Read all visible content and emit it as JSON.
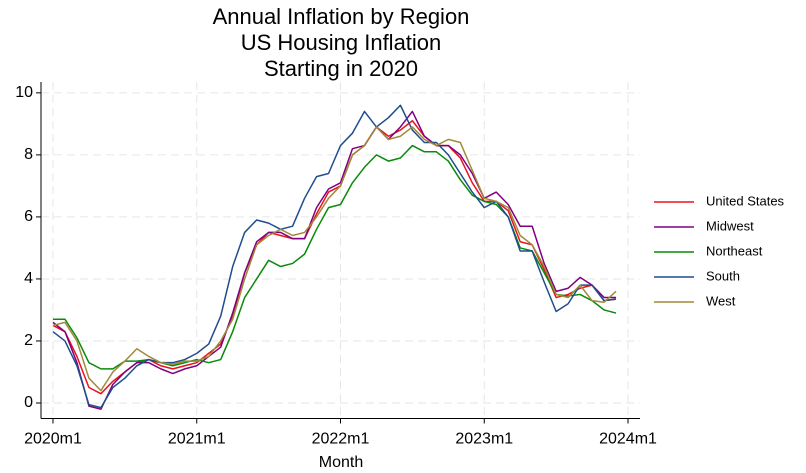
{
  "chart_data": {
    "type": "line",
    "title": [
      "Annual Inflation by Region",
      "US Housing Inflation",
      "Starting in 2020"
    ],
    "x_label": "Month",
    "x": [
      720,
      721,
      722,
      723,
      724,
      725,
      726,
      727,
      728,
      729,
      730,
      731,
      732,
      733,
      734,
      735,
      736,
      737,
      738,
      739,
      740,
      741,
      742,
      743,
      744,
      745,
      746,
      747,
      748,
      749,
      750,
      751,
      752,
      753,
      754,
      755,
      756,
      757,
      758,
      759,
      760,
      761,
      762,
      763,
      764,
      765,
      766,
      767
    ],
    "xlim": [
      719,
      769
    ],
    "xticks": [
      {
        "value": 720,
        "label": "2020m1"
      },
      {
        "value": 732,
        "label": "2021m1"
      },
      {
        "value": 744,
        "label": "2022m1"
      },
      {
        "value": 756,
        "label": "2023m1"
      },
      {
        "value": 768,
        "label": "2024m1"
      }
    ],
    "ylim": [
      -0.5,
      10.35
    ],
    "yticks": [
      0,
      2,
      4,
      6,
      8,
      10
    ],
    "grid": true,
    "legend": "right",
    "series": [
      {
        "name": "United States",
        "color": "#e8141c",
        "values": [
          2.5,
          2.3,
          1.5,
          0.5,
          0.3,
          0.7,
          1.0,
          1.3,
          1.4,
          1.2,
          1.1,
          1.2,
          1.3,
          1.6,
          1.9,
          2.8,
          4.2,
          5.1,
          5.5,
          5.4,
          5.3,
          5.3,
          6.1,
          6.8,
          7.0,
          8.0,
          8.3,
          8.9,
          8.6,
          8.8,
          9.1,
          8.6,
          8.3,
          8.3,
          7.9,
          7.1,
          6.5,
          6.5,
          6.2,
          5.2,
          5.1,
          4.3,
          3.4,
          3.5,
          3.7,
          3.8,
          3.3,
          3.35
        ]
      },
      {
        "name": "Midwest",
        "color": "#800080",
        "values": [
          2.6,
          2.3,
          1.3,
          -0.1,
          -0.2,
          0.6,
          1.0,
          1.3,
          1.3,
          1.1,
          0.95,
          1.1,
          1.2,
          1.5,
          1.8,
          2.9,
          4.2,
          5.2,
          5.5,
          5.5,
          5.3,
          5.3,
          6.3,
          6.9,
          7.1,
          8.2,
          8.3,
          8.9,
          8.5,
          8.9,
          9.4,
          8.6,
          8.3,
          8.3,
          8.0,
          7.4,
          6.6,
          6.8,
          6.4,
          5.7,
          5.7,
          4.5,
          3.6,
          3.7,
          4.05,
          3.8,
          3.4,
          3.4
        ]
      },
      {
        "name": "Northeast",
        "color": "#0a8a0a",
        "values": [
          2.7,
          2.7,
          2.1,
          1.3,
          1.1,
          1.1,
          1.35,
          1.35,
          1.4,
          1.3,
          1.2,
          1.3,
          1.4,
          1.3,
          1.4,
          2.3,
          3.4,
          4.0,
          4.6,
          4.4,
          4.5,
          4.8,
          5.6,
          6.3,
          6.4,
          7.1,
          7.6,
          8.0,
          7.8,
          7.9,
          8.3,
          8.1,
          8.1,
          7.8,
          7.2,
          6.7,
          6.5,
          6.4,
          6.0,
          5.0,
          4.9,
          4.2,
          3.5,
          3.45,
          3.5,
          3.3,
          3.0,
          2.9
        ]
      },
      {
        "name": "South",
        "color": "#1f4e8c",
        "values": [
          2.3,
          2.0,
          1.2,
          -0.05,
          -0.15,
          0.5,
          0.8,
          1.2,
          1.4,
          1.3,
          1.3,
          1.4,
          1.6,
          1.9,
          2.8,
          4.4,
          5.5,
          5.9,
          5.8,
          5.6,
          5.7,
          6.6,
          7.3,
          7.4,
          8.3,
          8.7,
          9.4,
          8.9,
          9.2,
          9.6,
          8.8,
          8.4,
          8.4,
          8.0,
          7.4,
          6.8,
          6.3,
          6.5,
          6.0,
          4.9,
          4.9,
          3.9,
          2.95,
          3.2,
          3.8,
          3.8,
          3.3,
          3.35
        ]
      },
      {
        "name": "West",
        "color": "#a08a3c",
        "values": [
          2.5,
          2.6,
          2.0,
          0.8,
          0.4,
          1.0,
          1.35,
          1.75,
          1.5,
          1.3,
          1.25,
          1.35,
          1.35,
          1.5,
          2.0,
          2.7,
          4.0,
          5.1,
          5.4,
          5.6,
          5.4,
          5.5,
          6.0,
          6.6,
          7.0,
          8.0,
          8.3,
          8.9,
          8.5,
          8.6,
          8.9,
          8.5,
          8.3,
          8.5,
          8.4,
          7.5,
          6.6,
          6.5,
          6.3,
          5.4,
          5.1,
          4.4,
          3.5,
          3.4,
          3.8,
          3.3,
          3.25,
          3.6
        ]
      }
    ]
  }
}
